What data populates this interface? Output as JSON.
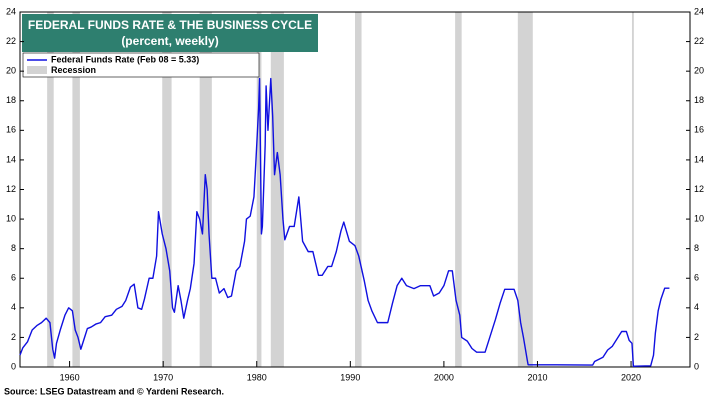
{
  "chart_data": {
    "type": "line",
    "title": "FEDERAL FUNDS RATE & THE BUSINESS CYCLE",
    "subtitle": "(percent, weekly)",
    "source": "Source: LSEG Datastream and © Yardeni Research.",
    "series": [
      {
        "name": "Federal Funds Rate (Feb 08 = 5.33)",
        "color": "#1010e0",
        "x": [
          1954.7,
          1955.0,
          1955.5,
          1956.0,
          1956.5,
          1957.0,
          1957.5,
          1957.9,
          1958.2,
          1958.4,
          1958.6,
          1959.0,
          1959.5,
          1959.9,
          1960.3,
          1960.6,
          1960.9,
          1961.2,
          1961.5,
          1961.9,
          1962.3,
          1962.8,
          1963.3,
          1963.8,
          1964.5,
          1965.0,
          1965.6,
          1966.0,
          1966.5,
          1966.9,
          1967.3,
          1967.7,
          1968.0,
          1968.5,
          1968.9,
          1969.3,
          1969.5,
          1969.9,
          1970.3,
          1970.7,
          1971.0,
          1971.2,
          1971.6,
          1971.9,
          1972.2,
          1972.6,
          1972.9,
          1973.3,
          1973.6,
          1973.9,
          1974.2,
          1974.5,
          1974.7,
          1974.9,
          1975.2,
          1975.6,
          1976.0,
          1976.5,
          1976.9,
          1977.3,
          1977.8,
          1978.2,
          1978.7,
          1978.9,
          1979.3,
          1979.7,
          1979.9,
          1980.2,
          1980.3,
          1980.5,
          1980.6,
          1980.9,
          1981.0,
          1981.2,
          1981.5,
          1981.7,
          1981.9,
          1982.2,
          1982.5,
          1982.8,
          1983.0,
          1983.5,
          1984.0,
          1984.5,
          1984.9,
          1985.5,
          1986.0,
          1986.6,
          1987.0,
          1987.6,
          1988.0,
          1988.5,
          1989.0,
          1989.3,
          1989.9,
          1990.5,
          1990.9,
          1991.5,
          1991.9,
          1992.3,
          1992.9,
          1993.5,
          1994.0,
          1994.5,
          1995.0,
          1995.5,
          1996.0,
          1996.8,
          1997.5,
          1998.5,
          1998.9,
          1999.5,
          2000.0,
          2000.5,
          2000.9,
          2001.3,
          2001.7,
          2001.9,
          2002.5,
          2003.0,
          2003.5,
          2004.4,
          2004.9,
          2005.5,
          2006.0,
          2006.5,
          2007.5,
          2007.9,
          2008.2,
          2008.5,
          2008.9,
          2009.0,
          2012.0,
          2015.9,
          2016.1,
          2017.0,
          2017.5,
          2018.0,
          2018.5,
          2019.0,
          2019.5,
          2019.8,
          2020.1,
          2020.25,
          2022.1,
          2022.4,
          2022.6,
          2022.9,
          2023.2,
          2023.6,
          2024.1
        ],
        "values": [
          0.8,
          1.3,
          1.7,
          2.5,
          2.8,
          3.0,
          3.3,
          3.0,
          1.2,
          0.6,
          1.6,
          2.5,
          3.5,
          4.0,
          3.8,
          2.5,
          2.0,
          1.2,
          1.8,
          2.6,
          2.7,
          2.9,
          3.0,
          3.4,
          3.5,
          3.9,
          4.1,
          4.5,
          5.4,
          5.6,
          4.0,
          3.9,
          4.6,
          6.0,
          6.0,
          7.5,
          10.5,
          9.0,
          8.0,
          6.5,
          4.0,
          3.7,
          5.5,
          4.5,
          3.3,
          4.5,
          5.3,
          7.0,
          10.5,
          10.0,
          9.0,
          13.0,
          12.0,
          9.0,
          6.0,
          6.0,
          5.0,
          5.3,
          4.7,
          4.8,
          6.5,
          6.8,
          8.5,
          10.0,
          10.2,
          11.5,
          13.8,
          17.5,
          19.5,
          9.0,
          9.5,
          15.0,
          19.0,
          16.0,
          19.5,
          17.0,
          13.0,
          14.5,
          13.0,
          10.0,
          8.6,
          9.5,
          9.5,
          11.5,
          8.5,
          7.8,
          7.8,
          6.2,
          6.2,
          6.8,
          6.8,
          7.8,
          9.2,
          9.8,
          8.5,
          8.2,
          7.5,
          5.8,
          4.5,
          3.8,
          3.0,
          3.0,
          3.0,
          4.3,
          5.5,
          6.0,
          5.5,
          5.3,
          5.5,
          5.5,
          4.8,
          5.0,
          5.5,
          6.5,
          6.5,
          4.5,
          3.5,
          2.0,
          1.75,
          1.25,
          1.0,
          1.0,
          2.0,
          3.2,
          4.3,
          5.25,
          5.25,
          4.5,
          3.0,
          2.0,
          0.5,
          0.15,
          0.15,
          0.13,
          0.37,
          0.66,
          1.15,
          1.4,
          1.9,
          2.4,
          2.4,
          1.8,
          1.6,
          0.05,
          0.08,
          0.8,
          2.3,
          3.8,
          4.6,
          5.33,
          5.33
        ]
      }
    ],
    "recession_name": "Recession",
    "recession_color": "#d3d3d3",
    "recessions": [
      [
        1957.6,
        1958.3
      ],
      [
        1960.3,
        1961.1
      ],
      [
        1969.9,
        1970.9
      ],
      [
        1973.9,
        1975.2
      ],
      [
        1980.0,
        1980.5
      ],
      [
        1981.5,
        1982.9
      ],
      [
        1990.5,
        1991.2
      ],
      [
        2001.2,
        2001.9
      ],
      [
        2007.9,
        2009.5
      ],
      [
        2020.1,
        2020.3
      ]
    ],
    "xlim": [
      1954.7,
      2026.3
    ],
    "xticks": [
      1960,
      1970,
      1980,
      1990,
      2000,
      2010,
      2020
    ],
    "ylim": [
      0,
      24
    ],
    "yticks": [
      0,
      2,
      4,
      6,
      8,
      10,
      12,
      14,
      16,
      18,
      20,
      22,
      24
    ],
    "y2lim": [
      0,
      24
    ],
    "y2ticks": [
      0,
      2,
      4,
      6,
      8,
      10,
      12,
      14,
      16,
      18,
      20,
      22,
      24
    ]
  }
}
